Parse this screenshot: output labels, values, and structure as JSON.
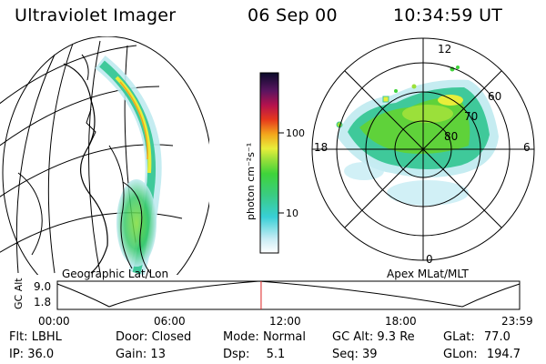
{
  "header": {
    "instrument": "Ultraviolet Imager",
    "date": "06 Sep 00",
    "time": "10:34:59 UT"
  },
  "colorbar": {
    "unit_label": "photon cm⁻²s⁻¹",
    "ticks": [
      "100",
      "10"
    ]
  },
  "panels": {
    "left_label": "Geographic Lat/Lon",
    "right_label": "Apex MLat/MLT"
  },
  "polar_plot": {
    "mlt_labels": [
      "12",
      "18",
      "6",
      "0"
    ],
    "lat_labels": [
      "60",
      "70",
      "80"
    ]
  },
  "altitude_plot": {
    "axis_label": "GC Alt",
    "y_ticks": [
      "9.0",
      "1.8"
    ],
    "x_ticks": [
      "00:00",
      "06:00",
      "12:00",
      "18:00",
      "23:59"
    ],
    "marker_hour": 10.58
  },
  "info": {
    "flt_label": "Flt:",
    "flt_value": "LBHL",
    "ip_label": "IP:",
    "ip_value": "36.0",
    "door_label": "Door:",
    "door_value": "Closed",
    "gain_label": "Gain:",
    "gain_value": "13",
    "mode_label": "Mode:",
    "mode_value": "Normal",
    "dsp_label": "Dsp:",
    "dsp_value": "5.1",
    "gcalt_label": "GC Alt:",
    "gcalt_value": "9.3 Re",
    "seq_label": "Seq:",
    "seq_value": "39",
    "glat_label": "GLat:",
    "glat_value": "77.0",
    "glon_label": "GLon:",
    "glon_value": "194.7"
  }
}
